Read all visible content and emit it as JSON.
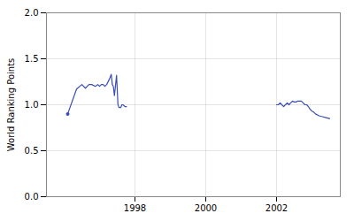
{
  "chart_data": {
    "type": "line",
    "ylabel": "World Ranking Points",
    "series": [
      {
        "color": "#3a4db5",
        "x": [
          1996.1,
          1996.35,
          1996.5,
          1996.6,
          1996.7,
          1996.78,
          1996.88,
          1996.95,
          1997.0,
          1997.05,
          1997.1,
          1997.15,
          1997.2,
          1997.28,
          1997.33,
          1997.36,
          1997.39,
          1997.42,
          1997.48,
          1997.52,
          1997.55,
          1997.57,
          1997.6,
          1997.63,
          1997.66,
          1997.69,
          1997.72,
          1997.76
        ],
        "values": [
          0.9,
          1.17,
          1.22,
          1.18,
          1.22,
          1.22,
          1.2,
          1.22,
          1.2,
          1.22,
          1.22,
          1.2,
          1.22,
          1.28,
          1.33,
          1.22,
          1.2,
          1.1,
          1.32,
          1.0,
          0.97,
          0.97,
          0.97,
          1.0,
          1.0,
          0.99,
          0.98,
          0.98
        ]
      },
      {
        "color": "#3a4db5",
        "x": [
          2002.0,
          2002.05,
          2002.1,
          2002.15,
          2002.2,
          2002.25,
          2002.3,
          2002.35,
          2002.4,
          2002.45,
          2002.5,
          2002.55,
          2002.6,
          2002.65,
          2002.7,
          2002.75,
          2002.8,
          2002.85,
          2002.9,
          2002.95,
          2003.0,
          2003.05,
          2003.1,
          2003.2,
          2003.3,
          2003.4,
          2003.5
        ],
        "values": [
          1.0,
          1.0,
          1.02,
          1.0,
          0.98,
          1.0,
          1.02,
          1.0,
          1.02,
          1.04,
          1.03,
          1.03,
          1.04,
          1.04,
          1.04,
          1.02,
          1.0,
          1.0,
          0.98,
          0.95,
          0.93,
          0.92,
          0.9,
          0.88,
          0.87,
          0.86,
          0.85
        ]
      },
      {
        "type": "scatter",
        "color": "#3a4db5",
        "x": [
          1996.1
        ],
        "values": [
          0.9
        ]
      }
    ],
    "xlim": [
      1995.5,
      2003.8
    ],
    "xticks": [
      1998,
      2000,
      2002
    ],
    "ylim": [
      0,
      2
    ],
    "yticks": [
      0,
      0.5,
      1,
      1.5,
      2
    ],
    "grid": true
  }
}
